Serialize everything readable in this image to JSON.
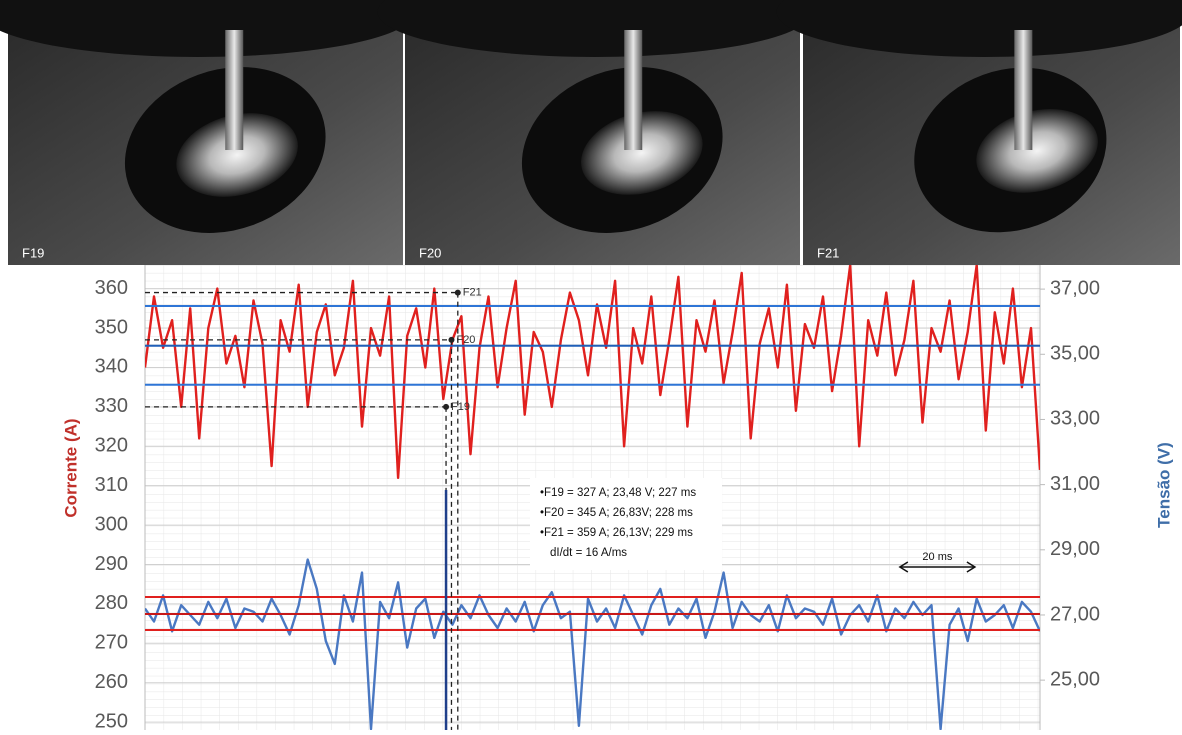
{
  "photos": [
    {
      "label": "F19"
    },
    {
      "label": "F20"
    },
    {
      "label": "F21"
    }
  ],
  "chart_data": {
    "type": "line",
    "y_label": "Corrente (A)",
    "y2_label": "Tensão (V)",
    "xlim": [
      0,
      99
    ],
    "ylim": [
      248,
      366
    ],
    "yticks": [
      250,
      260,
      270,
      280,
      290,
      300,
      310,
      320,
      330,
      340,
      350,
      360
    ],
    "y2lim": [
      23.47,
      37.74
    ],
    "y2ticks": [
      {
        "value": 25,
        "label": "25,00"
      },
      {
        "value": 27,
        "label": "27,00"
      },
      {
        "value": 29,
        "label": "29,00"
      },
      {
        "value": 31,
        "label": "31,00"
      },
      {
        "value": 33,
        "label": "33,00"
      },
      {
        "value": 35,
        "label": "35,00"
      },
      {
        "value": 37,
        "label": "37,00"
      }
    ],
    "grid": true,
    "series": [
      {
        "name": "Corrente",
        "color": "#e0201e",
        "axis": "y",
        "values": [
          340,
          358,
          345,
          352,
          330,
          355,
          322,
          350,
          360,
          341,
          348,
          335,
          357,
          346,
          315,
          352,
          344,
          361,
          330,
          349,
          356,
          338,
          345,
          362,
          325,
          350,
          343,
          358,
          312,
          348,
          355,
          340,
          360,
          332,
          347,
          353,
          318,
          345,
          358,
          335,
          350,
          362,
          328,
          349,
          344,
          330,
          347,
          359,
          352,
          338,
          356,
          345,
          362,
          320,
          350,
          341,
          358,
          333,
          347,
          363,
          325,
          352,
          344,
          357,
          336,
          349,
          364,
          322,
          346,
          355,
          340,
          361,
          329,
          351,
          345,
          358,
          334,
          348,
          366,
          320,
          352,
          343,
          359,
          338,
          347,
          362,
          326,
          350,
          344,
          357,
          337,
          349,
          366,
          324,
          354,
          341,
          360,
          335,
          350,
          314
        ]
      },
      {
        "name": "Tensão",
        "color": "#4a78c2",
        "axis": "y2",
        "values": [
          27.2,
          26.8,
          27.6,
          26.5,
          27.3,
          27.0,
          26.7,
          27.4,
          26.9,
          27.5,
          26.6,
          27.2,
          27.1,
          26.8,
          27.5,
          27.0,
          26.4,
          27.3,
          28.7,
          27.8,
          26.2,
          25.5,
          27.6,
          26.8,
          28.3,
          23.5,
          27.4,
          26.9,
          28.0,
          26.0,
          27.2,
          27.5,
          26.3,
          27.1,
          26.7,
          27.3,
          26.9,
          27.6,
          27.0,
          26.6,
          27.2,
          26.8,
          27.4,
          26.5,
          27.3,
          27.7,
          26.9,
          27.1,
          23.6,
          27.5,
          26.8,
          27.2,
          26.6,
          27.6,
          27.0,
          26.4,
          27.3,
          27.8,
          26.7,
          27.2,
          26.9,
          27.5,
          26.3,
          27.1,
          28.3,
          26.6,
          27.4,
          27.0,
          26.8,
          27.3,
          26.5,
          27.6,
          26.9,
          27.2,
          27.1,
          26.7,
          27.5,
          26.4,
          27.0,
          27.3,
          26.8,
          27.6,
          26.5,
          27.2,
          26.9,
          27.4,
          27.0,
          27.3,
          23.5,
          26.7,
          27.2,
          26.2,
          27.5,
          26.8,
          27.0,
          27.3,
          26.6,
          27.4,
          27.1,
          26.5
        ]
      }
    ],
    "reference_lines": [
      {
        "axis": "y",
        "value": 355.6,
        "color": "#2e75d6"
      },
      {
        "axis": "y",
        "value": 345.5,
        "color": "#1f5fb8"
      },
      {
        "axis": "y",
        "value": 335.6,
        "color": "#2e75d6"
      },
      {
        "axis": "y2",
        "value": 27.55,
        "color": "#e0201e"
      },
      {
        "axis": "y2",
        "value": 27.03,
        "color": "#c81818"
      },
      {
        "axis": "y2",
        "value": 26.54,
        "color": "#e0201e"
      }
    ],
    "markers": [
      {
        "label": "F19",
        "x": 33.3,
        "y": 330
      },
      {
        "label": "F20",
        "x": 33.9,
        "y": 347
      },
      {
        "label": "F21",
        "x": 34.6,
        "y": 359
      }
    ],
    "annotation": [
      "•F19 = 327 A; 23,48 V; 227 ms",
      "•F20 = 345 A; 26,83V; 228 ms",
      "•F21 = 359 A; 26,13V; 229 ms",
      "dI/dt = 16 A/ms"
    ],
    "scale_bar": {
      "label": "20 ms",
      "x": [
        83.5,
        91.8
      ]
    }
  }
}
